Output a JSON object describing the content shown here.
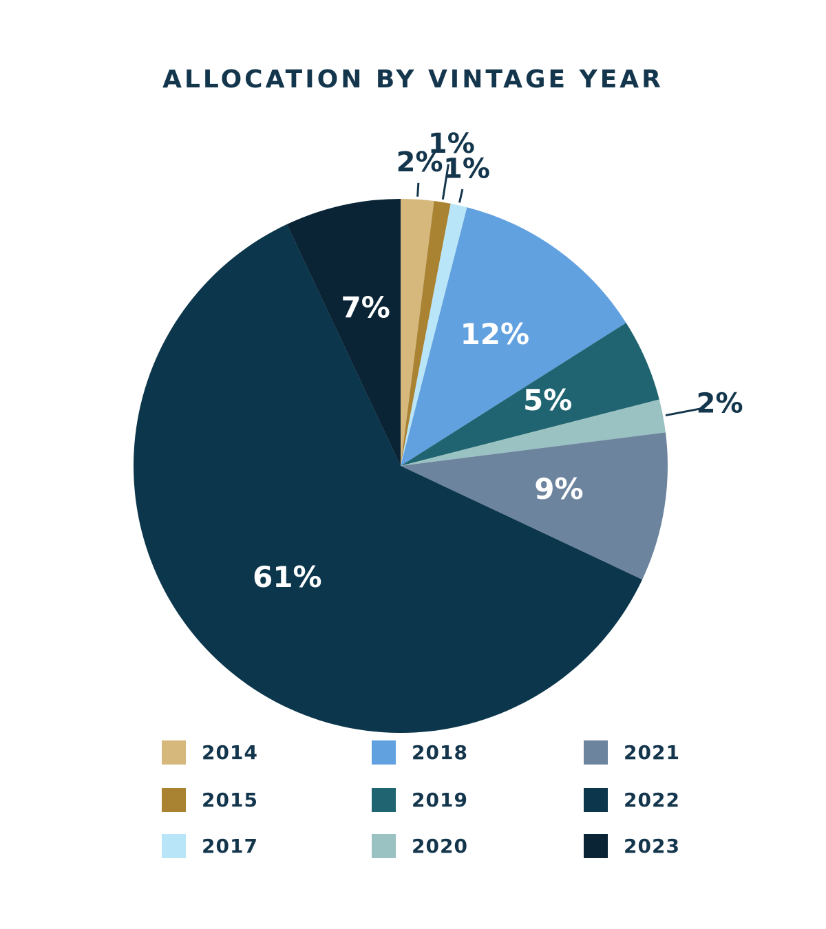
{
  "chart_data": {
    "type": "pie",
    "title": "ALLOCATION BY VINTAGE YEAR",
    "categories": [
      "2014",
      "2015",
      "2017",
      "2018",
      "2019",
      "2020",
      "2021",
      "2022",
      "2023"
    ],
    "values": [
      2,
      1,
      1,
      12,
      5,
      2,
      9,
      61,
      7
    ],
    "value_labels": [
      "2%",
      "1%",
      "1%",
      "12%",
      "5%",
      "2%",
      "9%",
      "61%",
      "7%"
    ],
    "colors": [
      "#d6b77c",
      "#a98232",
      "#b9e5f8",
      "#62a1df",
      "#1f6470",
      "#9bc2c2",
      "#6d849e",
      "#0b364b",
      "#0a2436"
    ]
  }
}
